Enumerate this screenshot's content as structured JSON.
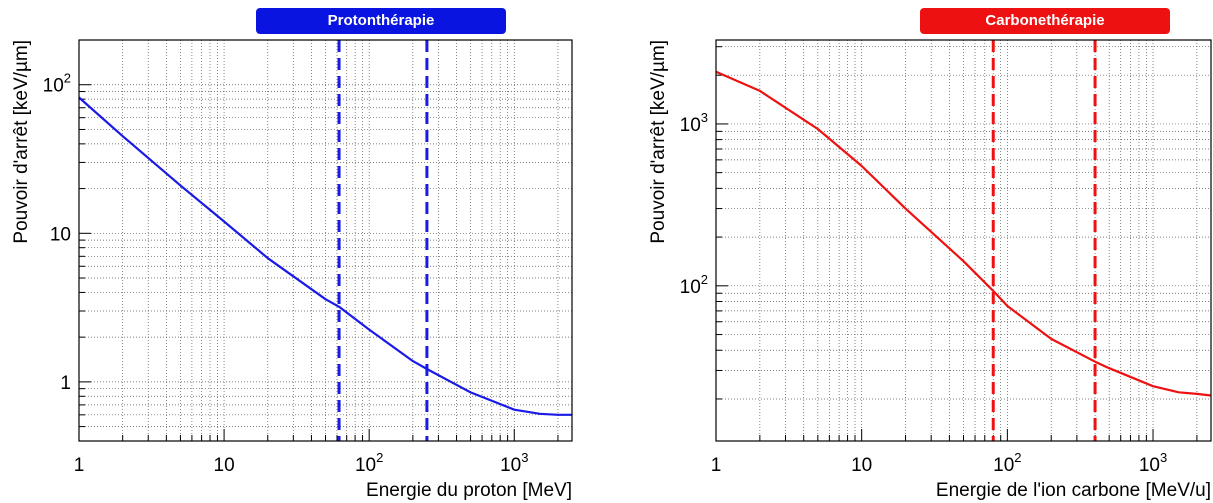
{
  "chart_data": [
    {
      "type": "line",
      "title": "Protonthérapie",
      "title_bg": "#0a14e0",
      "xlabel": "Energie du proton [MeV]",
      "ylabel": "Pouvoir d'arrêt [keV/µm]",
      "xscale": "log",
      "yscale": "log",
      "xlim": [
        1,
        2500
      ],
      "ylim": [
        0.4,
        200
      ],
      "grid": true,
      "x_ticks": [
        {
          "value": 1,
          "base": "1",
          "exp": ""
        },
        {
          "value": 10,
          "base": "10",
          "exp": ""
        },
        {
          "value": 100,
          "base": "10",
          "exp": "2"
        },
        {
          "value": 1000,
          "base": "10",
          "exp": "3"
        }
      ],
      "y_ticks": [
        {
          "value": 1,
          "base": "1",
          "exp": ""
        },
        {
          "value": 10,
          "base": "10",
          "exp": ""
        },
        {
          "value": 100,
          "base": "10",
          "exp": "2"
        }
      ],
      "series": [
        {
          "color": "#1a1ae6",
          "x": [
            1,
            2,
            5,
            10,
            20,
            50,
            62,
            100,
            200,
            250,
            500,
            1000,
            1500,
            2000,
            2500
          ],
          "y": [
            82,
            45,
            21,
            12,
            6.8,
            3.6,
            3.2,
            2.25,
            1.38,
            1.22,
            0.85,
            0.65,
            0.61,
            0.6,
            0.6
          ]
        }
      ],
      "vlines": [
        {
          "x": 62,
          "color": "#1a1ae6",
          "style": "dashed"
        },
        {
          "x": 250,
          "color": "#1a1ae6",
          "style": "dashed"
        }
      ]
    },
    {
      "type": "line",
      "title": "Carbonethérapie",
      "title_bg": "#ee1111",
      "xlabel": "Energie de l'ion carbone [MeV/u]",
      "ylabel": "Pouvoir d'arrêt [keV/µm]",
      "xscale": "log",
      "yscale": "log",
      "xlim": [
        1,
        2500
      ],
      "ylim": [
        11,
        3300
      ],
      "grid": true,
      "x_ticks": [
        {
          "value": 1,
          "base": "1",
          "exp": ""
        },
        {
          "value": 10,
          "base": "10",
          "exp": ""
        },
        {
          "value": 100,
          "base": "10",
          "exp": "2"
        },
        {
          "value": 1000,
          "base": "10",
          "exp": "3"
        }
      ],
      "y_ticks": [
        {
          "value": 100,
          "base": "10",
          "exp": "2"
        },
        {
          "value": 1000,
          "base": "10",
          "exp": "3"
        }
      ],
      "series": [
        {
          "color": "#ee1111",
          "x": [
            1,
            2,
            5,
            10,
            20,
            50,
            80,
            100,
            200,
            400,
            500,
            1000,
            1500,
            2000,
            2500
          ],
          "y": [
            2100,
            1600,
            930,
            550,
            300,
            142,
            93,
            75,
            47,
            34,
            31,
            24,
            22,
            21.5,
            21
          ]
        }
      ],
      "vlines": [
        {
          "x": 80,
          "color": "#ee1111",
          "style": "dashed"
        },
        {
          "x": 400,
          "color": "#ee1111",
          "style": "dashed"
        }
      ]
    }
  ]
}
